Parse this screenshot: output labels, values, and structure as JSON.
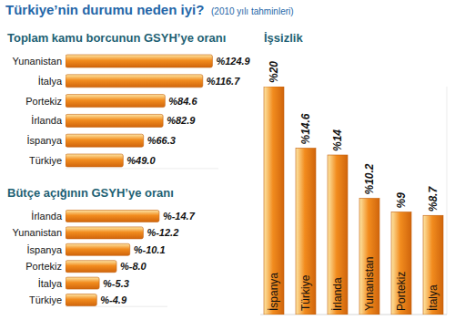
{
  "header": {
    "title": "Türkiye’nin durumu neden iyi?",
    "subtitle": "(2010 yılı tahminleri)"
  },
  "chart_data": [
    {
      "type": "bar",
      "orientation": "horizontal",
      "title": "Toplam kamu borcunun GSYH’ye oranı",
      "categories": [
        "Yunanistan",
        "İtalya",
        "Portekiz",
        "İrlanda",
        "İspanya",
        "Türkiye"
      ],
      "values": [
        124.9,
        116.7,
        84.6,
        82.9,
        66.3,
        49.0
      ],
      "value_labels": [
        "%124.9",
        "%116.7",
        "%84.6",
        "%82.9",
        "%66.3",
        "%49.0"
      ],
      "color": "#f28c1e",
      "xlim": [
        0,
        130
      ],
      "tick_labels": false,
      "data_labels": true
    },
    {
      "type": "bar",
      "orientation": "horizontal",
      "title": "Bütçe açığının GSYH’ye oranı",
      "categories": [
        "İrlanda",
        "Yunanistan",
        "İspanya",
        "Portekiz",
        "İtalya",
        "Türkiye"
      ],
      "values": [
        -14.7,
        -12.2,
        -10.1,
        -8.0,
        -5.3,
        -4.9
      ],
      "value_labels": [
        "%-14.7",
        "%-12.2",
        "%-10.1",
        "%-8.0",
        "%-5.3",
        "%-4.9"
      ],
      "color": "#f28c1e",
      "xlim": [
        0,
        -16
      ],
      "tick_labels": false,
      "data_labels": true
    },
    {
      "type": "bar",
      "title": "İşsizlik",
      "categories": [
        "İspanya",
        "Türkiye",
        "İrlanda",
        "Yunanistan",
        "Portekiz",
        "İtalya"
      ],
      "values": [
        20,
        14.6,
        14,
        10.2,
        9,
        8.7
      ],
      "value_labels": [
        "%20",
        "%14.6",
        "%14",
        "%10.2",
        "%9",
        "%8.7"
      ],
      "color": "#f28c1e",
      "ylim": [
        0,
        20
      ],
      "tick_labels": false,
      "data_labels": true
    }
  ]
}
